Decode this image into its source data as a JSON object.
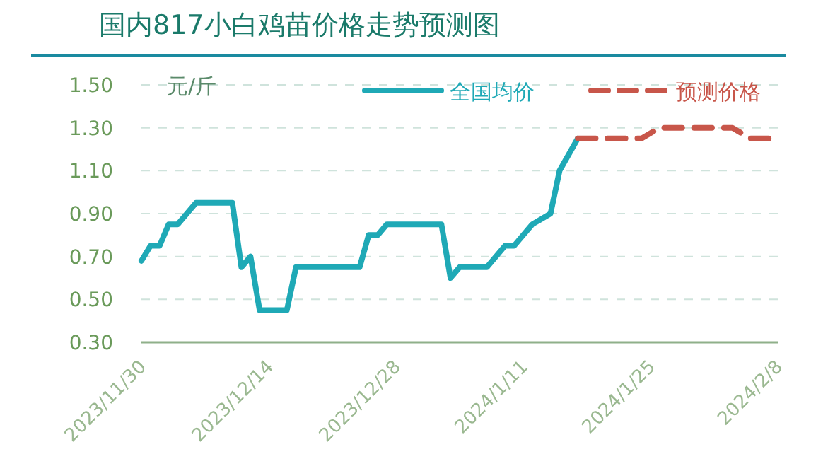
{
  "chart_data": {
    "type": "line",
    "title": "国内817小白鸡苗价格走势预测图",
    "ylabel": "元/斤",
    "xlim": [
      "2023-11-30",
      "2024-02-08"
    ],
    "xticks": [
      {
        "value": "2023-11-30",
        "label": "2023/11/30"
      },
      {
        "value": "2023-12-14",
        "label": "2023/12/14"
      },
      {
        "value": "2023-12-28",
        "label": "2023/12/28"
      },
      {
        "value": "2024-01-11",
        "label": "2024/1/11"
      },
      {
        "value": "2024-01-25",
        "label": "2024/1/25"
      },
      {
        "value": "2024-02-08",
        "label": "2024/2/8"
      }
    ],
    "ylim": [
      0.3,
      1.5
    ],
    "yticks": [
      {
        "value": 0.3,
        "label": "0.30"
      },
      {
        "value": 0.5,
        "label": "0.50"
      },
      {
        "value": 0.7,
        "label": "0.70"
      },
      {
        "value": 0.9,
        "label": "0.90"
      },
      {
        "value": 1.1,
        "label": "1.10"
      },
      {
        "value": 1.3,
        "label": "1.30"
      },
      {
        "value": 1.5,
        "label": "1.50"
      }
    ],
    "grid": "y",
    "legend": "top right",
    "series": [
      {
        "name": "全国均价",
        "color": "#1fa9b6",
        "line_style": "solid",
        "x": [
          "2023-11-30",
          "2023-12-01",
          "2023-12-02",
          "2023-12-03",
          "2023-12-04",
          "2023-12-06",
          "2023-12-10",
          "2023-12-11",
          "2023-12-12",
          "2023-12-13",
          "2023-12-16",
          "2023-12-17",
          "2023-12-24",
          "2023-12-25",
          "2023-12-26",
          "2023-12-27",
          "2024-01-02",
          "2024-01-03",
          "2024-01-04",
          "2024-01-07",
          "2024-01-09",
          "2024-01-10",
          "2024-01-12",
          "2024-01-14",
          "2024-01-15",
          "2024-01-17"
        ],
        "values": [
          0.68,
          0.75,
          0.75,
          0.85,
          0.85,
          0.95,
          0.95,
          0.65,
          0.7,
          0.45,
          0.45,
          0.65,
          0.65,
          0.8,
          0.8,
          0.85,
          0.85,
          0.6,
          0.65,
          0.65,
          0.75,
          0.75,
          0.85,
          0.9,
          1.1,
          1.25
        ]
      },
      {
        "name": "预测价格",
        "color": "#c8564a",
        "line_style": "dashed",
        "x": [
          "2024-01-17",
          "2024-01-24",
          "2024-01-26",
          "2024-02-03",
          "2024-02-05",
          "2024-02-07"
        ],
        "values": [
          1.25,
          1.25,
          1.3,
          1.3,
          1.25,
          1.25
        ]
      }
    ]
  }
}
